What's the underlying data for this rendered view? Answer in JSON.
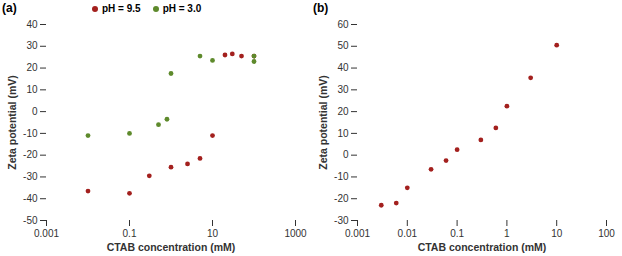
{
  "chart_data": [
    {
      "type": "scatter",
      "title": "(a)",
      "x_label": "CTAB concentration (mM)",
      "y_label": "Zeta potential (mV)",
      "log": "x",
      "grid": false,
      "legend": "top",
      "marker": "circle",
      "xlim": [
        0.001,
        1000
      ],
      "xticks": [
        0.001,
        0.1,
        10,
        1000
      ],
      "ylim": [
        -50,
        40
      ],
      "yticks": [
        -50,
        -40,
        -30,
        -20,
        -10,
        0,
        10,
        20,
        30,
        40
      ],
      "series": [
        {
          "name": "pH = 9.5",
          "color": "#a3201e",
          "x": [
            0.01,
            0.1,
            0.3,
            1,
            2.5,
            5,
            10,
            20,
            30,
            50,
            100
          ],
          "values": [
            -36.5,
            -37.5,
            -29.5,
            -25.5,
            -24,
            -21.5,
            -11,
            26,
            26.5,
            25.5,
            25.5
          ]
        },
        {
          "name": "pH = 3.0",
          "color": "#5e8a2c",
          "x": [
            0.01,
            0.1,
            0.5,
            0.8,
            1,
            5,
            10,
            100,
            100
          ],
          "values": [
            -11,
            -10,
            -6,
            -3.5,
            17.5,
            25.5,
            23.5,
            23,
            25.5
          ]
        }
      ]
    },
    {
      "type": "scatter",
      "title": "(b)",
      "x_label": "CTAB concentration (mM)",
      "y_label": "Zeta potential (mV)",
      "log": "x",
      "grid": false,
      "marker": "circle",
      "color": "#a3201e",
      "xlim": [
        0.001,
        100
      ],
      "xticks": [
        0.001,
        0.01,
        0.1,
        1,
        10,
        100
      ],
      "ylim": [
        -30,
        60
      ],
      "yticks": [
        -30,
        -20,
        -10,
        0,
        10,
        20,
        30,
        40,
        50,
        60
      ],
      "x": [
        0.003,
        0.006,
        0.01,
        0.03,
        0.06,
        0.1,
        0.3,
        0.6,
        1,
        3,
        10
      ],
      "values": [
        -23,
        -22,
        -15,
        -6.5,
        -2.5,
        2.5,
        7,
        12.5,
        22.5,
        35.5,
        50.5
      ]
    }
  ]
}
